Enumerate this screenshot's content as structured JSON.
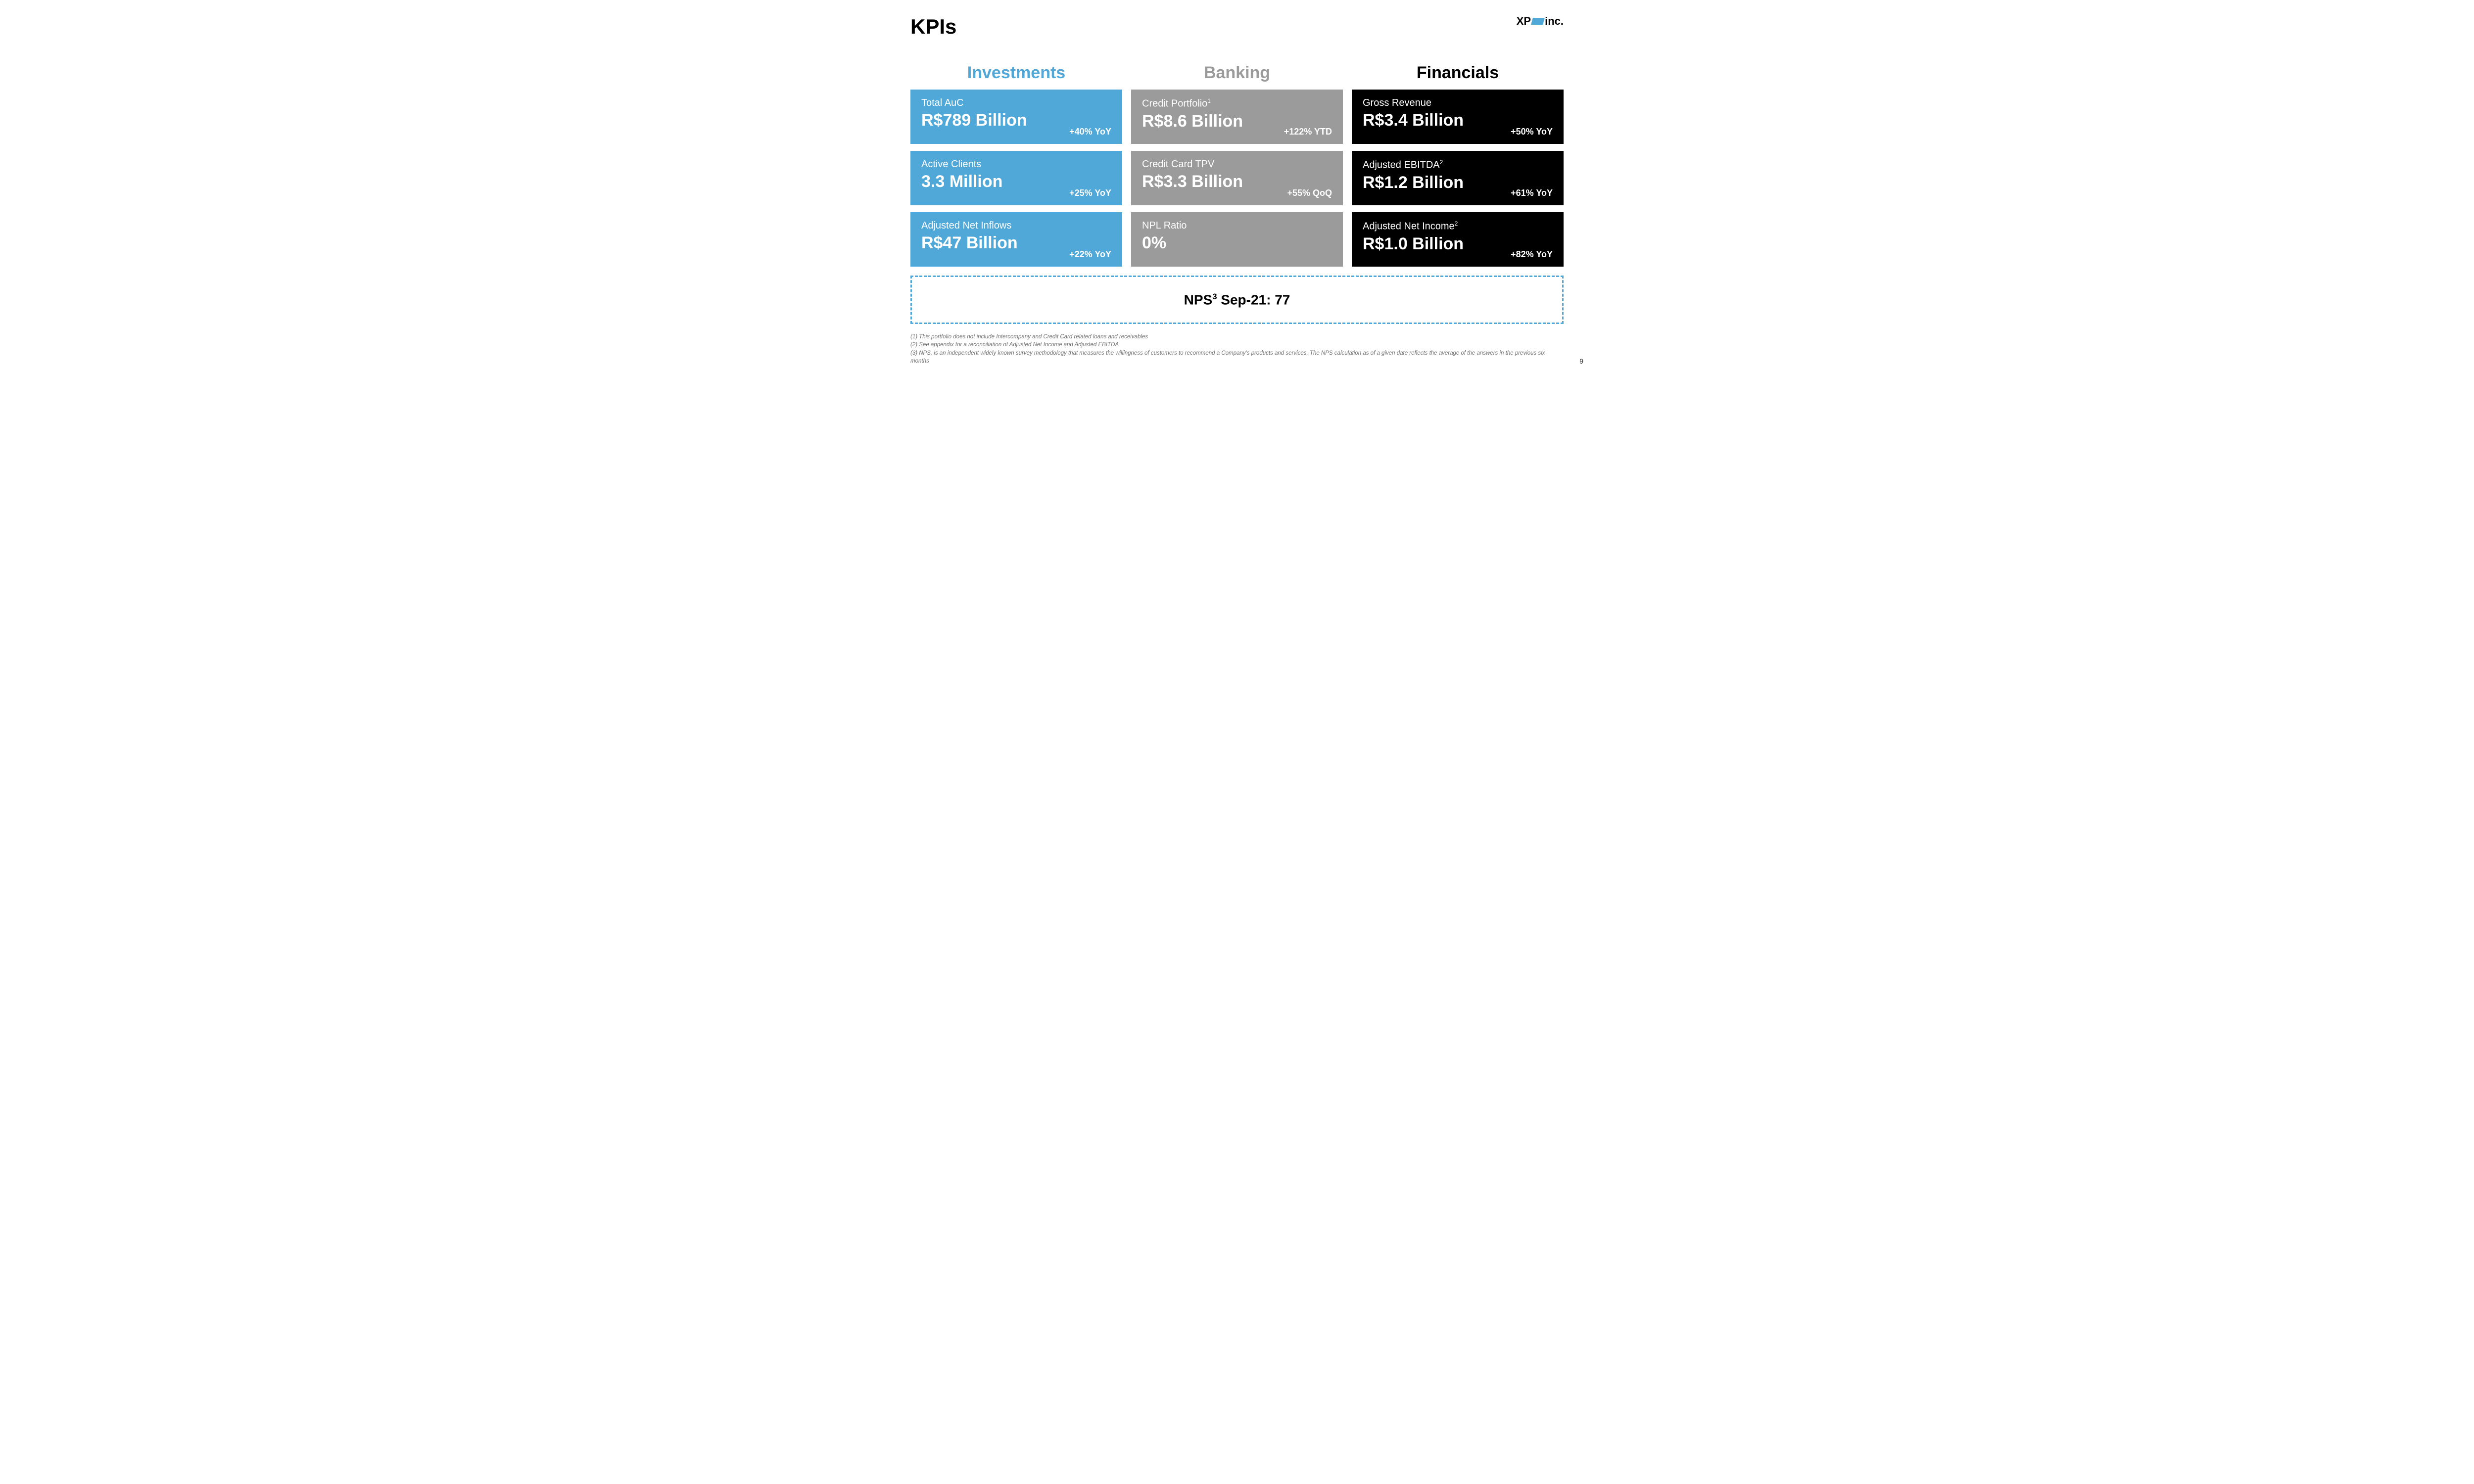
{
  "page": {
    "title": "KPIs",
    "number": "9"
  },
  "logo": {
    "prefix": "XP",
    "suffix": "inc."
  },
  "colors": {
    "investments_header": "#4fa8d8",
    "banking_header": "#9b9b9b",
    "financials_header": "#000000",
    "investments_card": "#4fa8d8",
    "banking_card": "#9b9b9b",
    "financials_card": "#000000",
    "nps_border": "#4fa8d8",
    "background": "#ffffff"
  },
  "columns": {
    "investments": {
      "header": "Investments",
      "cards": [
        {
          "label": "Total AuC",
          "value": "R$789 Billion",
          "change": "+40% YoY"
        },
        {
          "label": "Active Clients",
          "value": "3.3 Million",
          "change": "+25% YoY"
        },
        {
          "label": "Adjusted Net Inflows",
          "value": "R$47 Billion",
          "change": "+22% YoY"
        }
      ]
    },
    "banking": {
      "header": "Banking",
      "cards": [
        {
          "label_pre": "Credit Portfolio",
          "sup": "1",
          "value": "R$8.6 Billion",
          "change": "+122% YTD"
        },
        {
          "label": "Credit Card TPV",
          "value": "R$3.3 Billion",
          "change": "+55% QoQ"
        },
        {
          "label": "NPL Ratio",
          "value": "0%",
          "change": ""
        }
      ]
    },
    "financials": {
      "header": "Financials",
      "cards": [
        {
          "label": "Gross Revenue",
          "value": "R$3.4 Billion",
          "change": "+50% YoY"
        },
        {
          "label_pre": "Adjusted EBITDA",
          "sup": "2",
          "value": "R$1.2 Billion",
          "change": "+61% YoY"
        },
        {
          "label_pre": "Adjusted Net Income",
          "sup": "2",
          "value": "R$1.0 Billion",
          "change": "+82% YoY"
        }
      ]
    }
  },
  "nps": {
    "label_pre": "NPS",
    "sup": "3",
    "label_post": " Sep-21: 77"
  },
  "footnotes": {
    "f1": "(1) This portfolio does not include Intercompany and Credit Card related loans and receivables",
    "f2": "(2) See appendix for a reconciliation of Adjusted Net Income and Adjusted EBITDA",
    "f3": "(3) NPS, is an independent widely known survey methodology that measures the willingness of customers to recommend a Company's products and services. The NPS calculation as of a given date reflects the average of the answers in the previous six months"
  }
}
